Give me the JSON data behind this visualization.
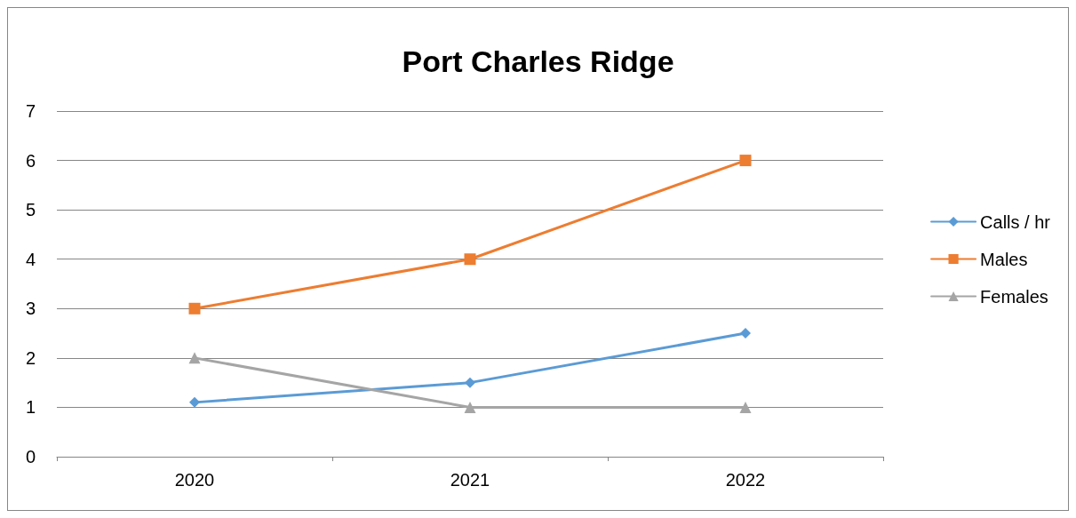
{
  "chart_data": {
    "type": "line",
    "title": "Port Charles Ridge",
    "categories": [
      "2020",
      "2021",
      "2022"
    ],
    "series": [
      {
        "name": "Calls / hr",
        "color": "#5b9bd5",
        "values": [
          1.1,
          1.5,
          2.5
        ],
        "marker": "diamond"
      },
      {
        "name": "Males",
        "color": "#ed7d31",
        "values": [
          3,
          4,
          6
        ],
        "marker": "square"
      },
      {
        "name": "Females",
        "color": "#a5a5a5",
        "values": [
          2,
          1,
          1
        ],
        "marker": "triangle"
      }
    ],
    "ylim": [
      0,
      7
    ],
    "yticks": [
      0,
      1,
      2,
      3,
      4,
      5,
      6,
      7
    ],
    "grid": "y",
    "legend": "right"
  }
}
